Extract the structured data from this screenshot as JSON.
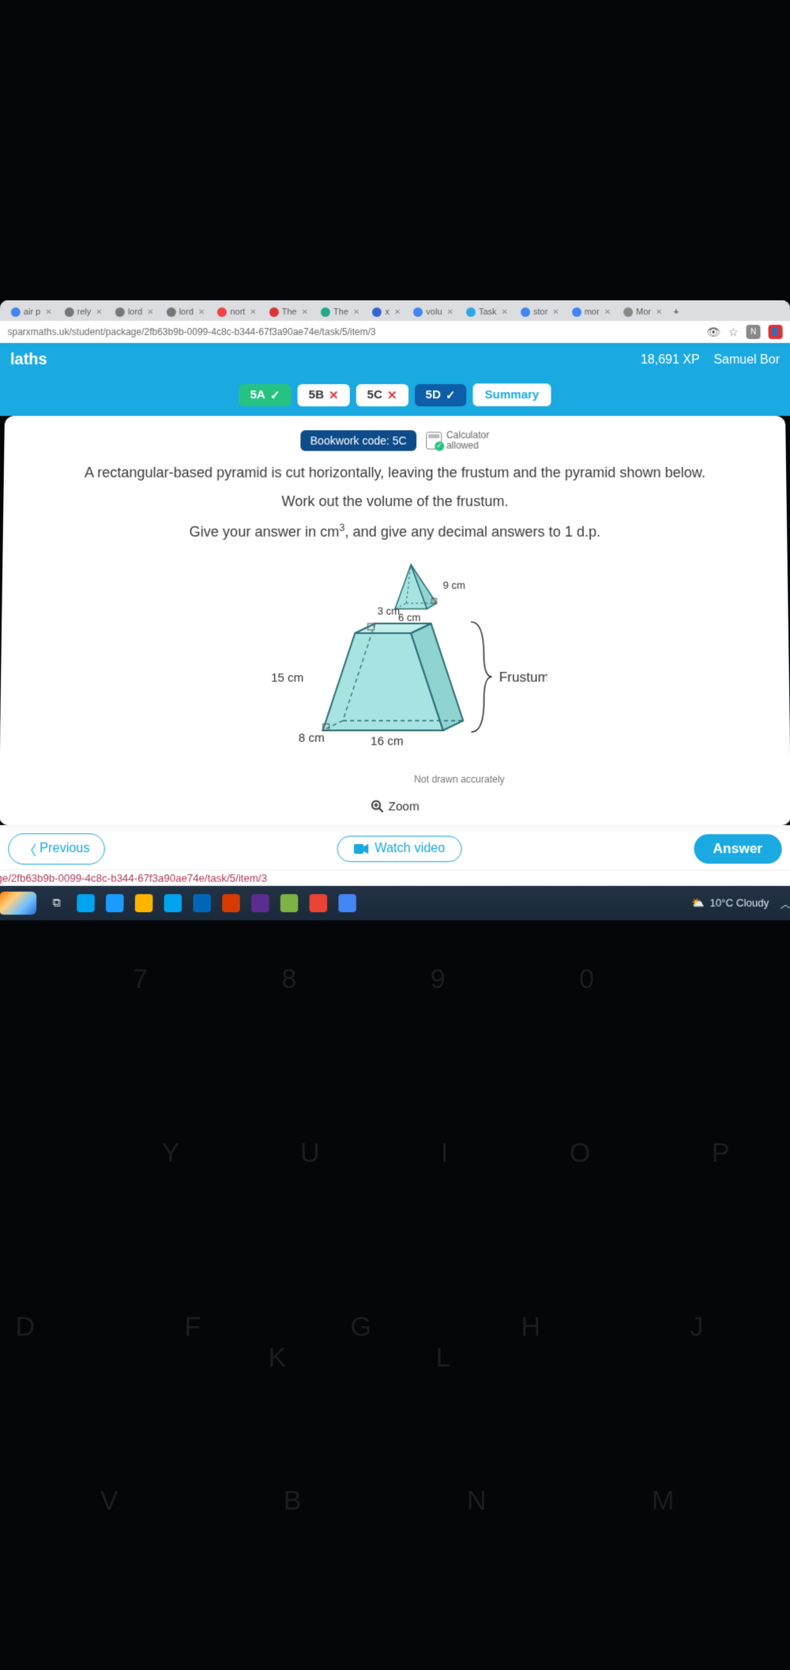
{
  "browser": {
    "tabs": [
      {
        "label": "air p",
        "favicon": "#4285f4"
      },
      {
        "label": "rely",
        "favicon": "#777"
      },
      {
        "label": "lord",
        "favicon": "#777"
      },
      {
        "label": "lord",
        "favicon": "#777"
      },
      {
        "label": "nort",
        "favicon": "#e44"
      },
      {
        "label": "The",
        "favicon": "#d33"
      },
      {
        "label": "The",
        "favicon": "#2a8"
      },
      {
        "label": "x",
        "favicon": "#36c"
      },
      {
        "label": "volu",
        "favicon": "#4285f4"
      },
      {
        "label": "Task",
        "favicon": "#2aa9e1"
      },
      {
        "label": "stor",
        "favicon": "#4285f4"
      },
      {
        "label": "mor",
        "favicon": "#4285f4"
      },
      {
        "label": "Mor",
        "favicon": "#888"
      }
    ],
    "url": "sparxmaths.uk/student/package/2fb63b9b-0099-4c8c-b344-67f3a90ae74e/task/5/item/3",
    "new_tab": "+"
  },
  "header": {
    "title": "laths",
    "xp": "18,691 XP",
    "user": "Samuel Bor"
  },
  "nav": {
    "items": [
      {
        "label": "5A",
        "state": "pass",
        "style": "pill-green"
      },
      {
        "label": "5B",
        "state": "fail",
        "style": "pill-white"
      },
      {
        "label": "5C",
        "state": "fail",
        "style": "pill-white"
      },
      {
        "label": "5D",
        "state": "pass",
        "style": "pill-blue"
      }
    ],
    "summary": "Summary"
  },
  "bookwork": "Bookwork code: 5C",
  "calc": {
    "line1": "Calculator",
    "line2": "allowed"
  },
  "question": {
    "p1": "A rectangular-based pyramid is cut horizontally, leaving the frustum and the pyramid shown below.",
    "p2a": "Work out the volume of the frustum.",
    "p2b_pre": "Give your answer in cm",
    "p2b_sup": "3",
    "p2b_post": ", and give any decimal answers to 1 d.p."
  },
  "diagram": {
    "top": {
      "height": "9 cm",
      "base_w": "6 cm",
      "base_d": "3 cm"
    },
    "frustum": {
      "height": "15 cm",
      "base_w": "16 cm",
      "base_d": "8 cm",
      "label": "Frustum"
    },
    "note": "Not drawn accurately",
    "fill": "#a7e3e0",
    "stroke": "#2c6f77"
  },
  "zoom": "Zoom",
  "buttons": {
    "prev": "Previous",
    "watch": "Watch video",
    "answer": "Answer"
  },
  "status_url": "ge/2fb63b9b-0099-4c8c-b344-67f3a90ae74e/task/5/item/3",
  "taskbar": {
    "weather": "10°C  Cloudy",
    "icons": [
      {
        "bg": "#00a4ef"
      },
      {
        "bg": "#1b9cfc"
      },
      {
        "bg": "#ffb400"
      },
      {
        "bg": "#00a4ef"
      },
      {
        "bg": "#0067b8"
      },
      {
        "bg": "#d83b01"
      },
      {
        "bg": "#5c2d91"
      },
      {
        "bg": "#7cb342"
      },
      {
        "bg": "#ea4335"
      },
      {
        "bg": "#4285f4"
      }
    ]
  },
  "keys": {
    "nums": "7 8 9 0",
    "yui": "Y U I O P",
    "dfg": "D F G H J K L",
    "vbn": "V B N M"
  }
}
